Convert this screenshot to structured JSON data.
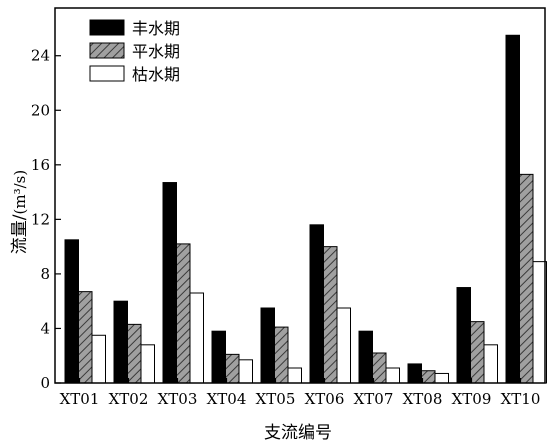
{
  "chart_data": {
    "type": "bar",
    "categories": [
      "XT01",
      "XT02",
      "XT03",
      "XT04",
      "XT05",
      "XT06",
      "XT07",
      "XT08",
      "XT09",
      "XT10"
    ],
    "series": [
      {
        "name": "丰水期",
        "values": [
          10.5,
          6.0,
          14.7,
          3.8,
          5.5,
          11.6,
          3.8,
          1.4,
          7.0,
          25.5
        ],
        "fill": "#000000",
        "pattern": "solid"
      },
      {
        "name": "平水期",
        "values": [
          6.7,
          4.3,
          10.2,
          2.1,
          4.1,
          10.0,
          2.2,
          0.9,
          4.5,
          15.3
        ],
        "fill": "#a0a0a0",
        "pattern": "hatched"
      },
      {
        "name": "枯水期",
        "values": [
          3.5,
          2.8,
          6.6,
          1.7,
          1.1,
          5.5,
          1.1,
          0.7,
          2.8,
          8.9
        ],
        "fill": "#ffffff",
        "pattern": "empty"
      }
    ],
    "xlabel": "支流编号",
    "ylabel_main": "流量/",
    "ylabel_unit": "(m³/s)",
    "yticks": [
      "0",
      "4",
      "8",
      "12",
      "16",
      "20",
      "24"
    ],
    "ylim": [
      0,
      27.5
    ],
    "grid": false,
    "legend_position": "top-left"
  }
}
